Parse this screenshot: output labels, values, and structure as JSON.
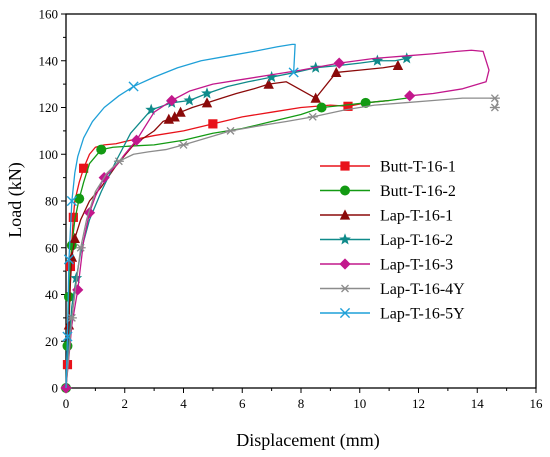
{
  "chart_data": {
    "type": "line",
    "xlabel": "Displacement (mm)",
    "ylabel": "Load (kN)",
    "xlim": [
      0,
      16
    ],
    "ylim": [
      0,
      160
    ],
    "xticks": [
      "0",
      "2",
      "4",
      "6",
      "8",
      "10",
      "12",
      "14",
      "16"
    ],
    "yticks": [
      "0",
      "20",
      "40",
      "60",
      "80",
      "100",
      "120",
      "140",
      "160"
    ],
    "legend_position": "center-right",
    "series": [
      {
        "name": "Butt-T-16-1",
        "color": "#e8121a",
        "marker": "square",
        "x": [
          0.0,
          0.05,
          0.1,
          0.15,
          0.2,
          0.25,
          0.3,
          0.45,
          0.6,
          0.8,
          1.0,
          1.3,
          1.7,
          2.2,
          3.0,
          4.0,
          5.0,
          6.0,
          7.0,
          8.0,
          9.0,
          9.6,
          10.2,
          11.0
        ],
        "y": [
          0,
          10,
          30,
          52,
          63,
          73,
          80,
          88,
          94,
          100,
          103,
          104,
          104.5,
          106,
          108,
          110,
          113,
          116,
          118,
          120,
          121,
          120.5,
          122,
          123
        ],
        "marker_indices": [
          1,
          3,
          5,
          8,
          16,
          21
        ]
      },
      {
        "name": "Butt-T-16-2",
        "color": "#139a13",
        "marker": "circle",
        "x": [
          0.0,
          0.05,
          0.1,
          0.15,
          0.2,
          0.3,
          0.45,
          0.6,
          0.8,
          1.2,
          1.6,
          2.2,
          3.0,
          4.0,
          5.0,
          6.0,
          7.0,
          8.0,
          8.7,
          9.5,
          10.2,
          11.0,
          11.6
        ],
        "y": [
          0,
          18,
          39,
          53,
          61,
          72,
          81,
          88,
          96,
          102,
          103,
          103.5,
          104,
          106,
          109,
          111,
          114,
          117,
          120,
          121,
          122,
          123,
          124
        ],
        "marker_indices": [
          0,
          1,
          2,
          4,
          6,
          9,
          18,
          20
        ]
      },
      {
        "name": "Lap-T-16-1",
        "color": "#8b0a0a",
        "marker": "triangle",
        "x": [
          0.0,
          0.1,
          0.15,
          0.2,
          0.3,
          0.5,
          0.8,
          1.2,
          1.7,
          2.3,
          3.0,
          3.3,
          3.5,
          3.7,
          3.9,
          4.3,
          4.8,
          5.3,
          5.8,
          6.4,
          6.9,
          7.5,
          8.5,
          9.2,
          10.0,
          10.8,
          11.3
        ],
        "y": [
          0,
          27,
          45,
          56,
          64,
          72,
          80,
          86,
          95,
          104,
          110,
          114,
          115,
          116,
          118,
          120,
          122,
          124,
          126,
          128,
          130,
          131,
          124,
          135,
          136,
          137,
          138
        ],
        "marker_indices": [
          1,
          3,
          4,
          12,
          13,
          14,
          16,
          20,
          22,
          23,
          26
        ]
      },
      {
        "name": "Lap-T-16-2",
        "color": "#0f8a8a",
        "marker": "star",
        "x": [
          0.0,
          0.1,
          0.2,
          0.35,
          0.5,
          0.8,
          1.2,
          1.7,
          2.2,
          2.9,
          3.6,
          4.2,
          4.8,
          5.5,
          6.2,
          7.0,
          7.8,
          8.5,
          9.3,
          10.0,
          10.6,
          11.2,
          11.6
        ],
        "y": [
          0,
          20,
          35,
          47,
          58,
          72,
          84,
          97,
          109,
          119,
          122,
          123,
          126,
          129,
          131,
          133,
          135,
          137,
          138,
          139,
          140,
          140,
          141
        ],
        "marker_indices": [
          3,
          9,
          10,
          11,
          12,
          15,
          17,
          20,
          22
        ]
      },
      {
        "name": "Lap-T-16-3",
        "color": "#c2188c",
        "marker": "diamond",
        "x": [
          0.0,
          0.2,
          0.4,
          0.6,
          0.8,
          1.0,
          1.3,
          1.7,
          2.0,
          2.4,
          3.0,
          3.6,
          4.2,
          5.0,
          6.0,
          7.0,
          8.0,
          9.3,
          10.5,
          11.5,
          12.5,
          13.3,
          13.8,
          14.2,
          14.4,
          14.3,
          13.5,
          12.5,
          11.7
        ],
        "y": [
          0,
          27,
          42,
          63,
          75,
          82,
          90,
          95,
          100,
          106,
          118,
          123,
          127,
          130,
          132,
          134,
          136,
          139,
          141,
          142,
          143,
          144,
          144.5,
          144,
          136,
          131,
          128,
          126,
          125
        ],
        "marker_indices": [
          0,
          2,
          4,
          6,
          9,
          11,
          17,
          28
        ]
      },
      {
        "name": "Lap-T-16-4Y",
        "color": "#8c8c8c",
        "marker": "asterisk",
        "x": [
          0.0,
          0.1,
          0.2,
          0.35,
          0.5,
          0.7,
          1.0,
          1.4,
          1.8,
          2.3,
          2.8,
          3.4,
          4.0,
          4.8,
          5.6,
          6.5,
          7.5,
          8.4,
          9.5,
          10.5,
          11.5,
          12.5,
          13.5,
          14.2,
          14.6,
          14.7,
          14.6
        ],
        "y": [
          0,
          15,
          30,
          45,
          60,
          72,
          84,
          92,
          97,
          100,
          101,
          102,
          104,
          107,
          110,
          112,
          114,
          116,
          119,
          121,
          122,
          123,
          124,
          124,
          124,
          122,
          120
        ],
        "marker_indices": [
          2,
          4,
          8,
          12,
          14,
          17,
          24,
          26
        ]
      },
      {
        "name": "Lap-T-16-5Y",
        "color": "#1fa0d8",
        "marker": "cross",
        "x": [
          0.0,
          0.05,
          0.1,
          0.2,
          0.3,
          0.4,
          0.6,
          0.9,
          1.3,
          1.8,
          2.3,
          3.0,
          3.8,
          4.6,
          5.5,
          6.4,
          7.2,
          7.7,
          7.8,
          7.75
        ],
        "y": [
          0,
          22,
          55,
          80,
          92,
          99,
          107,
          114,
          120,
          125,
          129,
          133,
          137,
          140,
          142,
          144,
          146,
          147,
          147,
          135
        ],
        "marker_indices": [
          1,
          2,
          3,
          10,
          19
        ]
      }
    ]
  }
}
